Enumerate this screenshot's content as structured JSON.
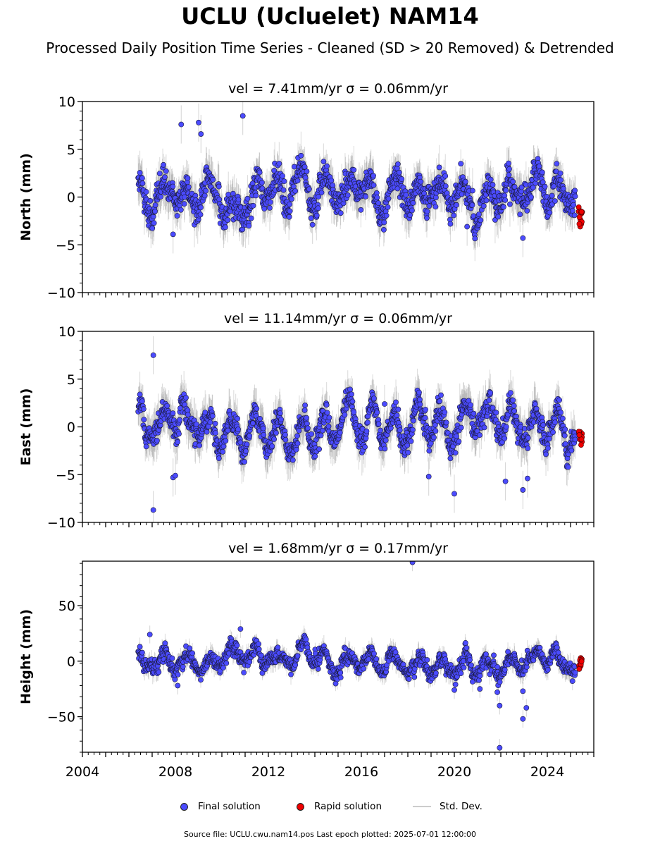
{
  "title": "UCLU (Ucluelet) NAM14",
  "subtitle": "Processed Daily Position Time Series - Cleaned (SD > 20 Removed) & Detrended",
  "legend": {
    "final": "Final solution",
    "rapid": "Rapid solution",
    "stddev": "Std. Dev."
  },
  "source_note": "Source file: UCLU.cwu.nam14.pos  Last epoch plotted: 2025-07-01 12:00:00",
  "colors": {
    "final": "#4b4bff",
    "rapid": "#ee0000",
    "stddev": "#b0b0b0"
  },
  "chart_data": [
    {
      "type": "scatter",
      "component": "north",
      "title": "vel = 7.41mm/yr   σ = 0.06mm/yr",
      "ylabel": "North (mm)",
      "xlim": [
        2004.0,
        2026.0
      ],
      "ylim": [
        -10,
        10
      ],
      "yticks": [
        -10,
        -5,
        0,
        5,
        10
      ],
      "xticks": [
        2004,
        2008,
        2012,
        2016,
        2020,
        2024
      ],
      "series_range": [
        2006.4,
        2025.2
      ],
      "baseline_offset": 0.3,
      "seasonal_amplitude": 1.5,
      "noise": 1.1,
      "sd": 1.0,
      "rapid": {
        "x_range": [
          2025.35,
          2025.5
        ],
        "y_range": [
          -3.1,
          -0.6
        ]
      },
      "outliers": [
        {
          "x": 2007.9,
          "y": -3.9
        },
        {
          "x": 2008.25,
          "y": 7.6
        },
        {
          "x": 2009.0,
          "y": 7.8
        },
        {
          "x": 2010.9,
          "y": 8.5
        },
        {
          "x": 2009.1,
          "y": 6.6
        },
        {
          "x": 2022.95,
          "y": -4.3
        },
        {
          "x": 2020.55,
          "y": -3.1
        },
        {
          "x": 2013.9,
          "y": -2.9
        }
      ]
    },
    {
      "type": "scatter",
      "component": "east",
      "title": "vel = 11.14mm/yr   σ = 0.06mm/yr",
      "ylabel": "East (mm)",
      "xlim": [
        2004.0,
        2026.0
      ],
      "ylim": [
        -10,
        10
      ],
      "yticks": [
        -10,
        -5,
        0,
        5,
        10
      ],
      "xticks": [
        2004,
        2008,
        2012,
        2016,
        2020,
        2024
      ],
      "series_range": [
        2006.4,
        2025.2
      ],
      "baseline_offset": 0.0,
      "seasonal_amplitude": 1.6,
      "noise": 0.9,
      "sd": 1.0,
      "rapid": {
        "x_range": [
          2025.35,
          2025.5
        ],
        "y_range": [
          -2.0,
          -0.4
        ]
      },
      "outliers": [
        {
          "x": 2007.05,
          "y": 7.5
        },
        {
          "x": 2007.05,
          "y": -8.7
        },
        {
          "x": 2007.9,
          "y": -5.3
        },
        {
          "x": 2008.0,
          "y": -5.1
        },
        {
          "x": 2018.9,
          "y": -5.2
        },
        {
          "x": 2020.0,
          "y": -7.0
        },
        {
          "x": 2022.2,
          "y": -5.7
        },
        {
          "x": 2022.95,
          "y": -6.6
        },
        {
          "x": 2023.15,
          "y": -5.4
        },
        {
          "x": 2017.0,
          "y": 2.4
        }
      ]
    },
    {
      "type": "scatter",
      "component": "height",
      "title": "vel = 1.68mm/yr   σ = 0.17mm/yr",
      "ylabel": "Height (mm)",
      "xlim": [
        2004.0,
        2026.0
      ],
      "ylim": [
        -82,
        90
      ],
      "yticks": [
        -50,
        0,
        50
      ],
      "xticks": [
        2004,
        2008,
        2012,
        2016,
        2020,
        2024
      ],
      "series_range": [
        2006.4,
        2025.2
      ],
      "baseline_offset": 0.0,
      "seasonal_amplitude": 6.5,
      "noise": 5.0,
      "sd": 4.0,
      "rapid": {
        "x_range": [
          2025.35,
          2025.5
        ],
        "y_range": [
          -8.0,
          4.0
        ]
      },
      "outliers": [
        {
          "x": 2018.2,
          "y": 89
        },
        {
          "x": 2008.1,
          "y": -22
        },
        {
          "x": 2020.0,
          "y": -26
        },
        {
          "x": 2020.05,
          "y": -21
        },
        {
          "x": 2021.1,
          "y": -25
        },
        {
          "x": 2021.85,
          "y": -28
        },
        {
          "x": 2021.95,
          "y": -40
        },
        {
          "x": 2021.95,
          "y": -78
        },
        {
          "x": 2022.95,
          "y": -52
        },
        {
          "x": 2023.1,
          "y": -42
        },
        {
          "x": 2022.95,
          "y": -27
        },
        {
          "x": 2010.8,
          "y": 29
        },
        {
          "x": 2006.9,
          "y": 24
        }
      ]
    }
  ]
}
